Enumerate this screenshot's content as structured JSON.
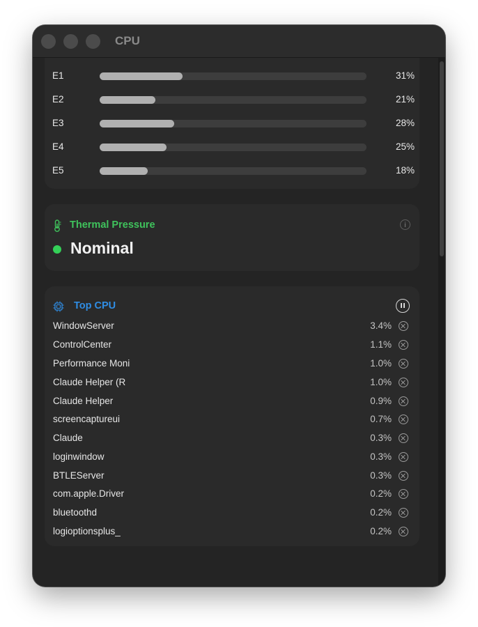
{
  "window": {
    "title": "CPU"
  },
  "cores": [
    {
      "label": "E1",
      "percent": "31%",
      "value": 31
    },
    {
      "label": "E2",
      "percent": "21%",
      "value": 21
    },
    {
      "label": "E3",
      "percent": "28%",
      "value": 28
    },
    {
      "label": "E4",
      "percent": "25%",
      "value": 25
    },
    {
      "label": "E5",
      "percent": "18%",
      "value": 18
    }
  ],
  "thermal": {
    "title": "Thermal Pressure",
    "status": "Nominal",
    "title_color": "#3fc35c",
    "status_color": "#34d058"
  },
  "top_cpu": {
    "title": "Top CPU",
    "title_color": "#2f8de4",
    "processes": [
      {
        "name": "WindowServer",
        "cpu": "3.4%"
      },
      {
        "name": "ControlCenter",
        "cpu": "1.1%"
      },
      {
        "name": "Performance Moni",
        "cpu": "1.0%"
      },
      {
        "name": "Claude Helper (R",
        "cpu": "1.0%"
      },
      {
        "name": "Claude Helper",
        "cpu": "0.9%"
      },
      {
        "name": "screencaptureui",
        "cpu": "0.7%"
      },
      {
        "name": "Claude",
        "cpu": "0.3%"
      },
      {
        "name": "loginwindow",
        "cpu": "0.3%"
      },
      {
        "name": "BTLEServer",
        "cpu": "0.3%"
      },
      {
        "name": "com.apple.Driver",
        "cpu": "0.2%"
      },
      {
        "name": "bluetoothd",
        "cpu": "0.2%"
      },
      {
        "name": "logioptionsplus_",
        "cpu": "0.2%"
      }
    ]
  },
  "icons": {
    "thermometer": "thermometer-icon",
    "info": "info-icon",
    "cpu": "cpu-chip-icon",
    "pause": "pause-icon",
    "kill": "close-circle-icon"
  }
}
